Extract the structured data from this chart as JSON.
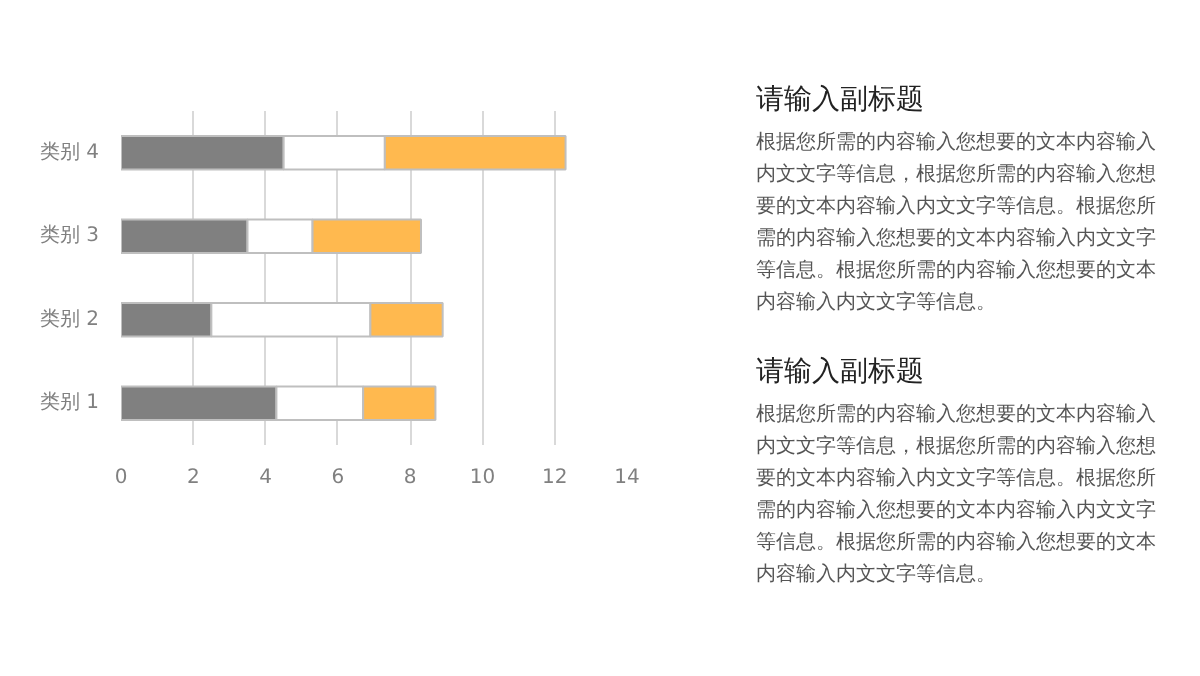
{
  "chart_data": {
    "type": "bar",
    "orientation": "horizontal",
    "stacked": true,
    "categories": [
      "类别 4",
      "类别 3",
      "类别 2",
      "类别 1"
    ],
    "series": [
      {
        "color": "#808080",
        "values": [
          4.5,
          3.5,
          2.5,
          4.3
        ]
      },
      {
        "color": "#ffffff",
        "values": [
          2.8,
          1.8,
          4.4,
          2.4
        ]
      },
      {
        "color": "#ffb94f",
        "values": [
          5.0,
          3.0,
          2.0,
          2.0
        ]
      }
    ],
    "xlim": [
      0,
      14
    ],
    "xticks": [
      0,
      2,
      4,
      6,
      8,
      10,
      12,
      14
    ],
    "grid": "x",
    "annotations": [
      "请输入副标题",
      "根据您所需的内容输入您想要的文本内容输入内文文字等信息，根据您所需的内容输入您想要的文本内容输入内文文字等信息。根据您所需的内容输入您想要的文本内容输入内文文字等信息。根据您所需的内容输入您想要的文本内容输入内文文字等信息。",
      "请输入副标题",
      "根据您所需的内容输入您想要的文本内容输入内文文字等信息，根据您所需的内容输入您想要的文本内容输入内文文字等信息。根据您所需的内容输入您想要的文本内容输入内文文字等信息。根据您所需的内容输入您想要的文本内容输入内文文字等信息。"
    ]
  }
}
